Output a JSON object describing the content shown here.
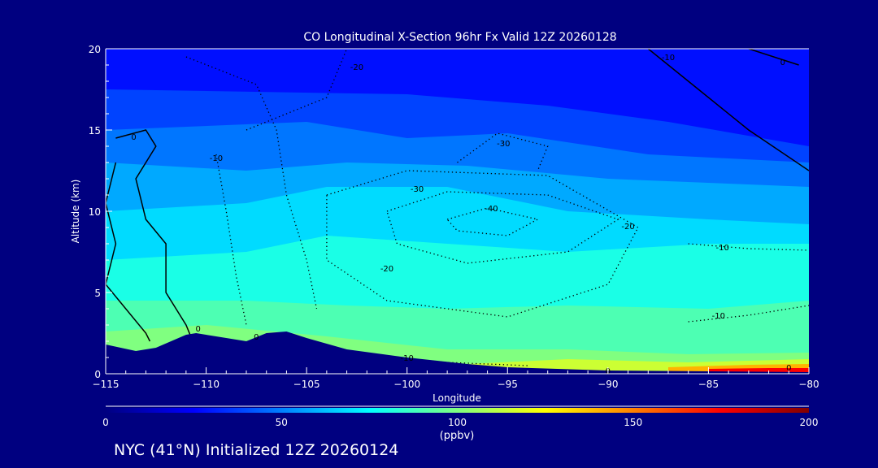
{
  "chart_data": {
    "type": "heatmap",
    "title": "CO Longitudinal X-Section 96hr  Fx Valid 12Z 20260128",
    "xlabel": "Longitude",
    "ylabel": "Altitude (km)",
    "xlim": [
      -115,
      -80
    ],
    "ylim": [
      0,
      20
    ],
    "xticks": [
      "-115",
      "-110",
      "-105",
      "-100",
      "-95",
      "-90",
      "-85",
      "-80"
    ],
    "yticks": [
      "0",
      "5",
      "10",
      "15",
      "20"
    ],
    "colorbar": {
      "range": [
        0,
        200
      ],
      "ticks": [
        "0",
        "50",
        "100",
        "150",
        "200"
      ],
      "unit_label": "(ppbv)",
      "stops": [
        {
          "v": 0,
          "c": "#000080"
        },
        {
          "v": 25,
          "c": "#0000ff"
        },
        {
          "v": 50,
          "c": "#0080ff"
        },
        {
          "v": 75,
          "c": "#00ffff"
        },
        {
          "v": 100,
          "c": "#80ff80"
        },
        {
          "v": 125,
          "c": "#ffff00"
        },
        {
          "v": 150,
          "c": "#ff8000"
        },
        {
          "v": 175,
          "c": "#ff0000"
        },
        {
          "v": 200,
          "c": "#800000"
        }
      ]
    },
    "field_bands": [
      {
        "value": 28,
        "poly": [
          [
            -115,
            20
          ],
          [
            -80,
            20
          ],
          [
            -80,
            0
          ],
          [
            -115,
            0
          ]
        ]
      },
      {
        "value": 38,
        "poly": [
          [
            -115,
            17.5
          ],
          [
            -100,
            17.2
          ],
          [
            -93,
            16.5
          ],
          [
            -87,
            15.5
          ],
          [
            -80,
            14
          ],
          [
            -80,
            0
          ],
          [
            -115,
            0
          ]
        ]
      },
      {
        "value": 48,
        "poly": [
          [
            -115,
            15
          ],
          [
            -105,
            15.5
          ],
          [
            -100,
            14.5
          ],
          [
            -95,
            14.8
          ],
          [
            -88,
            13.5
          ],
          [
            -80,
            13
          ],
          [
            -80,
            0
          ],
          [
            -115,
            0
          ]
        ]
      },
      {
        "value": 58,
        "poly": [
          [
            -115,
            13
          ],
          [
            -108,
            12.5
          ],
          [
            -103,
            13
          ],
          [
            -97,
            12.8
          ],
          [
            -90,
            12
          ],
          [
            -80,
            11.5
          ],
          [
            -80,
            0
          ],
          [
            -115,
            0
          ]
        ]
      },
      {
        "value": 68,
        "poly": [
          [
            -115,
            10
          ],
          [
            -108,
            10.5
          ],
          [
            -104,
            11.5
          ],
          [
            -98,
            11.5
          ],
          [
            -92,
            10
          ],
          [
            -85,
            9.5
          ],
          [
            -80,
            9.2
          ],
          [
            -80,
            0
          ],
          [
            -115,
            0
          ]
        ]
      },
      {
        "value": 80,
        "poly": [
          [
            -115,
            7
          ],
          [
            -108,
            7.5
          ],
          [
            -104,
            8.5
          ],
          [
            -98,
            8
          ],
          [
            -92,
            7.5
          ],
          [
            -85,
            8
          ],
          [
            -80,
            8
          ],
          [
            -80,
            0
          ],
          [
            -115,
            0
          ]
        ]
      },
      {
        "value": 90,
        "poly": [
          [
            -115,
            4.5
          ],
          [
            -108,
            4.5
          ],
          [
            -103,
            4.2
          ],
          [
            -98,
            4
          ],
          [
            -92,
            4.2
          ],
          [
            -85,
            4
          ],
          [
            -80,
            4.5
          ],
          [
            -80,
            0
          ],
          [
            -115,
            0
          ]
        ]
      },
      {
        "value": 100,
        "poly": [
          [
            -115,
            2.6
          ],
          [
            -110,
            3
          ],
          [
            -104,
            2.3
          ],
          [
            -98,
            1.5
          ],
          [
            -92,
            1.5
          ],
          [
            -86,
            1.2
          ],
          [
            -80,
            1.3
          ],
          [
            -80,
            0
          ],
          [
            -115,
            0
          ]
        ]
      },
      {
        "value": 115,
        "poly": [
          [
            -97,
            0.6
          ],
          [
            -92,
            0.9
          ],
          [
            -86,
            0.7
          ],
          [
            -80,
            0.9
          ],
          [
            -80,
            0
          ],
          [
            -97,
            0
          ]
        ]
      },
      {
        "value": 140,
        "poly": [
          [
            -87,
            0.4
          ],
          [
            -83,
            0.55
          ],
          [
            -80,
            0.6
          ],
          [
            -80,
            0
          ],
          [
            -87,
            0
          ]
        ]
      },
      {
        "value": 175,
        "poly": [
          [
            -85,
            0.3
          ],
          [
            -82,
            0.35
          ],
          [
            -80,
            0.35
          ],
          [
            -80,
            0
          ],
          [
            -85,
            0
          ]
        ]
      }
    ],
    "terrain": [
      [
        -115,
        1.8
      ],
      [
        -113.5,
        1.4
      ],
      [
        -112.5,
        1.6
      ],
      [
        -111,
        2.4
      ],
      [
        -110.5,
        2.5
      ],
      [
        -109,
        2.2
      ],
      [
        -108,
        2.0
      ],
      [
        -107,
        2.5
      ],
      [
        -106,
        2.6
      ],
      [
        -105,
        2.2
      ],
      [
        -103,
        1.5
      ],
      [
        -100,
        1.0
      ],
      [
        -97,
        0.6
      ],
      [
        -95,
        0.4
      ],
      [
        -90,
        0.2
      ],
      [
        -85,
        0.15
      ],
      [
        -80,
        0.1
      ],
      [
        -80,
        0
      ],
      [
        -115,
        0
      ]
    ],
    "contours": [
      {
        "level": -40,
        "style": "dotted",
        "pts": [
          [
            -98,
            9.5
          ],
          [
            -96,
            10.2
          ],
          [
            -93.5,
            9.5
          ],
          [
            -95,
            8.5
          ],
          [
            -97.5,
            8.8
          ],
          [
            -98,
            9.5
          ]
        ]
      },
      {
        "level": -30,
        "style": "dotted",
        "pts": [
          [
            -101,
            10
          ],
          [
            -98,
            11.2
          ],
          [
            -93,
            11
          ],
          [
            -89.5,
            9.5
          ],
          [
            -92,
            7.5
          ],
          [
            -97,
            6.8
          ],
          [
            -100.5,
            8
          ],
          [
            -101,
            10
          ]
        ]
      },
      {
        "level": -30,
        "style": "dotted",
        "pts": [
          [
            -97.5,
            13
          ],
          [
            -95.5,
            14.8
          ],
          [
            -93,
            14
          ],
          [
            -93.5,
            12.5
          ]
        ]
      },
      {
        "level": -20,
        "style": "dotted",
        "pts": [
          [
            -104,
            11
          ],
          [
            -100,
            12.5
          ],
          [
            -93,
            12.2
          ],
          [
            -88.5,
            9
          ],
          [
            -90,
            5.5
          ],
          [
            -95,
            3.5
          ],
          [
            -101,
            4.5
          ],
          [
            -104,
            7
          ],
          [
            -104,
            11
          ]
        ]
      },
      {
        "level": -10,
        "style": "dotted",
        "pts": [
          [
            -108,
            15
          ],
          [
            -104,
            17
          ],
          [
            -103,
            20
          ]
        ]
      },
      {
        "level": -10,
        "style": "dotted",
        "pts": [
          [
            -109.5,
            13.5
          ],
          [
            -109,
            10
          ],
          [
            -108.5,
            6
          ],
          [
            -108,
            3
          ]
        ]
      },
      {
        "level": -10,
        "style": "dotted",
        "pts": [
          [
            -86,
            8
          ],
          [
            -83,
            7.7
          ],
          [
            -80,
            7.6
          ]
        ]
      },
      {
        "level": -10,
        "style": "dotted",
        "pts": [
          [
            -86,
            3.2
          ],
          [
            -83,
            3.6
          ],
          [
            -80,
            4.2
          ]
        ]
      },
      {
        "level": -10,
        "style": "dotted",
        "pts": [
          [
            -102,
            1.2
          ],
          [
            -98,
            0.7
          ],
          [
            -94,
            0.5
          ]
        ]
      },
      {
        "level": -20,
        "style": "dotted",
        "pts": [
          [
            -111,
            19.5
          ],
          [
            -107.5,
            17.8
          ],
          [
            -106.5,
            15
          ],
          [
            -106,
            11
          ],
          [
            -105,
            7
          ],
          [
            -104.5,
            4
          ]
        ]
      },
      {
        "level": 0,
        "style": "solid",
        "pts": [
          [
            -114.5,
            14.5
          ],
          [
            -113,
            15
          ],
          [
            -112.5,
            14
          ],
          [
            -113.5,
            12
          ],
          [
            -113,
            9.5
          ],
          [
            -112,
            8
          ],
          [
            -112,
            5
          ],
          [
            -111,
            3
          ],
          [
            -110.8,
            2.4
          ]
        ]
      },
      {
        "level": 0,
        "style": "solid",
        "pts": [
          [
            -114.5,
            13
          ],
          [
            -115,
            10.5
          ],
          [
            -114.5,
            8
          ],
          [
            -115,
            5.5
          ],
          [
            -114,
            4
          ],
          [
            -113,
            2.5
          ],
          [
            -112.8,
            2
          ]
        ]
      },
      {
        "level": 0,
        "style": "solid",
        "pts": [
          [
            -88,
            20
          ],
          [
            -85.5,
            17.5
          ],
          [
            -83,
            15
          ],
          [
            -80,
            12.5
          ]
        ]
      },
      {
        "level": 0,
        "style": "solid",
        "pts": [
          [
            -83,
            20
          ],
          [
            -80.5,
            19
          ]
        ]
      }
    ],
    "contour_labels": [
      {
        "text": "-40",
        "lon": -95.8,
        "alt": 10.2
      },
      {
        "text": "-30",
        "lon": -99.5,
        "alt": 11.4
      },
      {
        "text": "-30",
        "lon": -95.2,
        "alt": 14.2
      },
      {
        "text": "-20",
        "lon": -101,
        "alt": 6.5
      },
      {
        "text": "-20",
        "lon": -89,
        "alt": 9.1
      },
      {
        "text": "-20",
        "lon": -102.5,
        "alt": 18.9
      },
      {
        "text": "-10",
        "lon": -109.5,
        "alt": 13.3
      },
      {
        "text": "-10",
        "lon": -84.3,
        "alt": 7.8
      },
      {
        "text": "-10",
        "lon": -84.5,
        "alt": 3.6
      },
      {
        "text": "-10",
        "lon": -100,
        "alt": 1.0
      },
      {
        "text": "-10",
        "lon": -87,
        "alt": 19.5
      },
      {
        "text": "0",
        "lon": -113.6,
        "alt": 14.6
      },
      {
        "text": "0",
        "lon": -110.4,
        "alt": 2.8
      },
      {
        "text": "0",
        "lon": -107.5,
        "alt": 2.3
      },
      {
        "text": "0",
        "lon": -90,
        "alt": 0.2
      },
      {
        "text": "0",
        "lon": -81,
        "alt": 0.4
      },
      {
        "text": "0",
        "lon": -81.3,
        "alt": 19.2
      }
    ]
  },
  "footer": "NYC (41°N) Initialized 12Z 20260124"
}
